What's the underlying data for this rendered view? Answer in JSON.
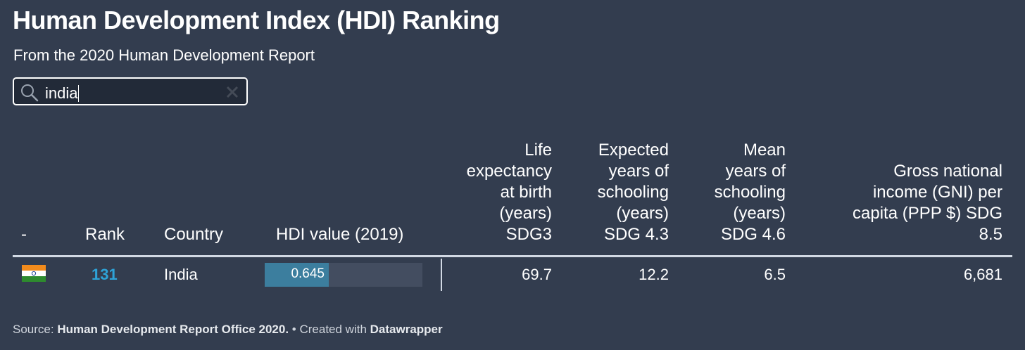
{
  "title": "Human Development Index (HDI) Ranking",
  "subtitle": "From the 2020 Human Development Report",
  "search": {
    "value": "india",
    "icon": "search-icon",
    "clear_icon": "close-icon"
  },
  "table": {
    "columns": [
      {
        "key": "flag",
        "label": "-"
      },
      {
        "key": "rank",
        "label": "Rank"
      },
      {
        "key": "country",
        "label": "Country"
      },
      {
        "key": "hdi",
        "label": "HDI value (2019)"
      },
      {
        "key": "life",
        "label_lines": [
          "Life",
          "expectancy",
          "at birth",
          "(years)",
          "SDG3"
        ]
      },
      {
        "key": "exp_school",
        "label_lines": [
          "Expected",
          "years of",
          "schooling",
          "(years)",
          "SDG 4.3"
        ]
      },
      {
        "key": "mean_school",
        "label_lines": [
          "Mean",
          "years of",
          "schooling",
          "(years)",
          "SDG 4.6"
        ]
      },
      {
        "key": "gni",
        "label_lines": [
          "Gross national",
          "income (GNI) per",
          "capita (PPP $) SDG",
          "8.5"
        ]
      }
    ],
    "rows": [
      {
        "flag": "india-flag-icon",
        "rank": "131",
        "country": "India",
        "hdi": "0.645",
        "hdi_fraction": 0.645,
        "life": "69.7",
        "exp_school": "12.2",
        "mean_school": "6.5",
        "gni": "6,681"
      }
    ]
  },
  "footer": {
    "source_prefix": "Source: ",
    "source": "Human Development Report Office 2020.",
    "created_prefix": " • Created with ",
    "created_with": "Datawrapper"
  },
  "colors": {
    "background": "#333d4f",
    "rank": "#2ea3d8",
    "bar_fill": "#3c7e9e",
    "bar_bg": "#434d60"
  }
}
